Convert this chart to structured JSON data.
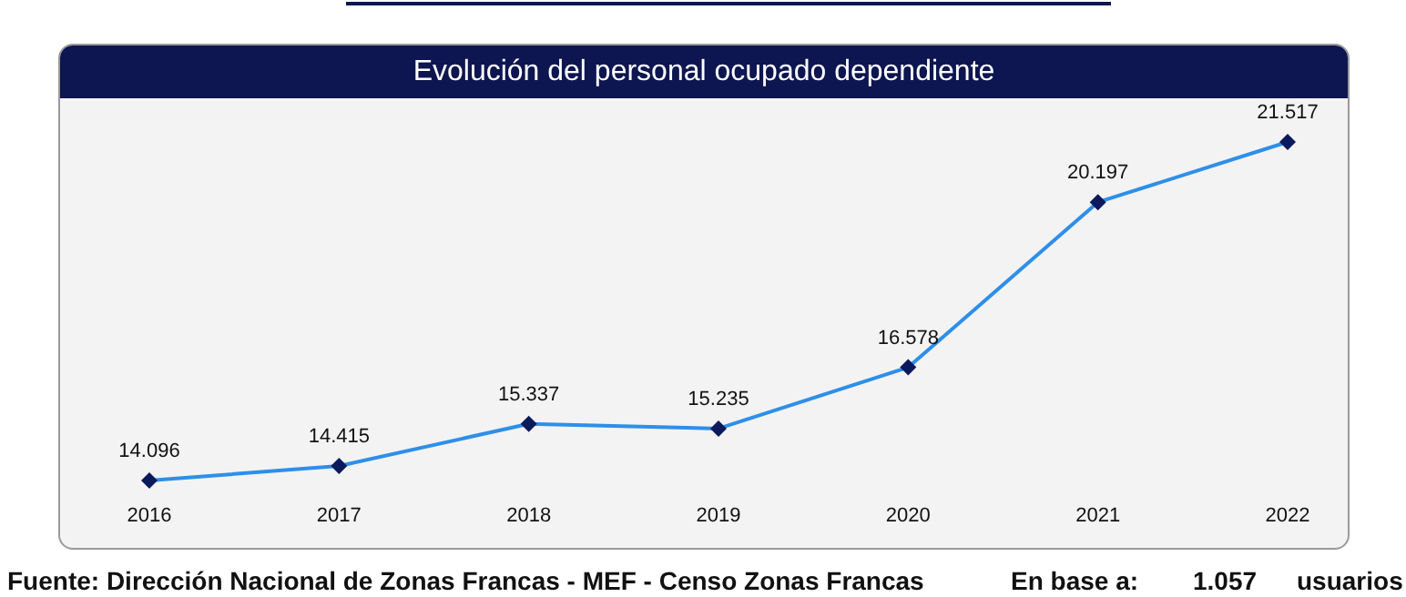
{
  "chart_data": {
    "type": "line",
    "title": "Evolución del personal ocupado dependiente",
    "categories": [
      "2016",
      "2017",
      "2018",
      "2019",
      "2020",
      "2021",
      "2022"
    ],
    "series": [
      {
        "color": "#2e8fe8",
        "values": [
          14096,
          14415,
          15337,
          15235,
          16578,
          20197,
          21517
        ],
        "value_labels": [
          "14.096",
          "14.415",
          "15.337",
          "15.235",
          "16.578",
          "20.197",
          "21.517"
        ]
      }
    ],
    "marker": "diamond",
    "grid": false,
    "tick_labels": "x",
    "annotations": [
      "Fuente: Dirección Nacional de Zonas Francas - MEF - Censo Zonas Francas",
      "En base a:",
      "1.057",
      "usuarios"
    ]
  }
}
